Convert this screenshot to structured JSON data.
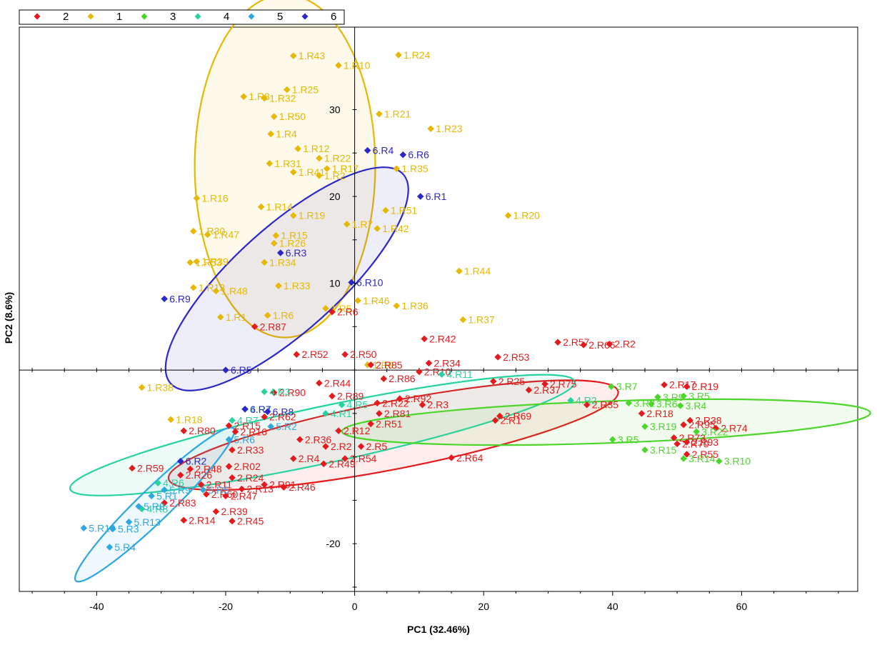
{
  "chart_data": {
    "type": "scatter",
    "xlabel": "PC1 (32.46%)",
    "ylabel": "PC2 (8.6%)",
    "xlim": [
      -52,
      78
    ],
    "ylim": [
      -25.5,
      39.5
    ],
    "xticks": [
      -40,
      -20,
      0,
      20,
      40,
      60
    ],
    "yticks": [
      -20,
      10,
      20,
      30
    ],
    "legend_position": "top-left",
    "legend_order": [
      "2",
      "1",
      "3",
      "4",
      "5",
      "6"
    ],
    "series": [
      {
        "name": "1",
        "color": "#e6b800",
        "points": [
          {
            "label": "1.R43",
            "x": -9.5,
            "y": 36.2
          },
          {
            "label": "1.R10",
            "x": -2.5,
            "y": 35.1
          },
          {
            "label": "1.R24",
            "x": 6.8,
            "y": 36.3
          },
          {
            "label": "1.R8",
            "x": -17.2,
            "y": 31.5
          },
          {
            "label": "1.R32",
            "x": -14,
            "y": 31.3
          },
          {
            "label": "1.R25",
            "x": -10.5,
            "y": 32.3
          },
          {
            "label": "1.R50",
            "x": -12.5,
            "y": 29.2
          },
          {
            "label": "1.R4",
            "x": -13,
            "y": 27.2
          },
          {
            "label": "1.R21",
            "x": 3.8,
            "y": 29.5
          },
          {
            "label": "1.R23",
            "x": 11.8,
            "y": 27.8
          },
          {
            "label": "1.R12",
            "x": -8.8,
            "y": 25.5
          },
          {
            "label": "1.R22",
            "x": -5.5,
            "y": 24.4
          },
          {
            "label": "1.R17",
            "x": -4.3,
            "y": 23.2
          },
          {
            "label": "1.R31",
            "x": -13.2,
            "y": 23.8
          },
          {
            "label": "1.R41",
            "x": -9.5,
            "y": 22.8
          },
          {
            "label": "1.R2",
            "x": -5.5,
            "y": 22.4
          },
          {
            "label": "1.R35",
            "x": 6.5,
            "y": 23.2
          },
          {
            "label": "1.R16",
            "x": -24.5,
            "y": 19.8
          },
          {
            "label": "1.R14",
            "x": -14.5,
            "y": 18.8
          },
          {
            "label": "1.R19",
            "x": -9.5,
            "y": 17.8
          },
          {
            "label": "1.R51",
            "x": 4.8,
            "y": 18.4
          },
          {
            "label": "1.R7",
            "x": -1.2,
            "y": 16.8
          },
          {
            "label": "1.R42",
            "x": 3.5,
            "y": 16.3
          },
          {
            "label": "1.R20",
            "x": 23.8,
            "y": 17.8
          },
          {
            "label": "1.R30",
            "x": -25.0,
            "y": 16.0
          },
          {
            "label": "1.R47",
            "x": -22.8,
            "y": 15.6
          },
          {
            "label": "1.R15",
            "x": -12.2,
            "y": 15.5
          },
          {
            "label": "1.R26",
            "x": -12.5,
            "y": 14.6
          },
          {
            "label": "1.R53",
            "x": -25.5,
            "y": 12.4
          },
          {
            "label": "1.R39",
            "x": -24.5,
            "y": 12.5
          },
          {
            "label": "1.R34",
            "x": -14.0,
            "y": 12.4
          },
          {
            "label": "1.R44",
            "x": 16.2,
            "y": 11.4
          },
          {
            "label": "1.R13",
            "x": -25.0,
            "y": 9.5
          },
          {
            "label": "1.R48",
            "x": -21.5,
            "y": 9.1
          },
          {
            "label": "1.R33",
            "x": -11.8,
            "y": 9.7
          },
          {
            "label": "1.R46",
            "x": 0.5,
            "y": 8.0
          },
          {
            "label": "1.R36",
            "x": 6.5,
            "y": 7.4
          },
          {
            "label": "1.R1",
            "x": -20.8,
            "y": 6.1
          },
          {
            "label": "1.R6",
            "x": -13.5,
            "y": 6.3
          },
          {
            "label": "1.R5",
            "x": -4.5,
            "y": 7.1
          },
          {
            "label": "1.R37",
            "x": 16.8,
            "y": 5.8
          },
          {
            "label": "1.R38",
            "x": -33.0,
            "y": -2.0
          },
          {
            "label": "1.R18",
            "x": -28.5,
            "y": -5.7
          },
          {
            "label": "1.R9",
            "x": 2.0,
            "y": 0.6
          }
        ]
      },
      {
        "name": "2",
        "color": "#e41a1c",
        "points": [
          {
            "label": "2.R87",
            "x": -15.5,
            "y": 5.0
          },
          {
            "label": "2.R6",
            "x": -3.5,
            "y": 6.7
          },
          {
            "label": "2.R42",
            "x": 10.8,
            "y": 3.6
          },
          {
            "label": "2.R57",
            "x": 31.5,
            "y": 3.2
          },
          {
            "label": "2.R66",
            "x": 35.5,
            "y": 2.9
          },
          {
            "label": "2.R2",
            "x": 39.5,
            "y": 3.0
          },
          {
            "label": "2.R52",
            "x": -9.0,
            "y": 1.8
          },
          {
            "label": "2.R50",
            "x": -1.5,
            "y": 1.8
          },
          {
            "label": "2.R53",
            "x": 22.2,
            "y": 1.5
          },
          {
            "label": "2.R85",
            "x": 2.5,
            "y": 0.6
          },
          {
            "label": "2.R34",
            "x": 11.5,
            "y": 0.8
          },
          {
            "label": "2.R10",
            "x": 10.0,
            "y": -0.2
          },
          {
            "label": "2.R86",
            "x": 4.5,
            "y": -1.0
          },
          {
            "label": "2.R44",
            "x": -5.5,
            "y": -1.5
          },
          {
            "label": "2.R25",
            "x": 21.5,
            "y": -1.3
          },
          {
            "label": "2.R75",
            "x": 29.5,
            "y": -1.6
          },
          {
            "label": "2.R37",
            "x": 27.0,
            "y": -2.3
          },
          {
            "label": "2.R90",
            "x": -12.5,
            "y": -2.6
          },
          {
            "label": "2.R89",
            "x": -3.5,
            "y": -3.0
          },
          {
            "label": "2.R22",
            "x": 3.5,
            "y": -3.8
          },
          {
            "label": "2.R92",
            "x": 7.0,
            "y": -3.3
          },
          {
            "label": "2.R3",
            "x": 10.5,
            "y": -4.0
          },
          {
            "label": "2.R81",
            "x": 3.8,
            "y": -5.0
          },
          {
            "label": "2.R51",
            "x": 2.5,
            "y": -6.2
          },
          {
            "label": "2.R35",
            "x": 36.0,
            "y": -4.0
          },
          {
            "label": "2.R69",
            "x": 22.5,
            "y": -5.3
          },
          {
            "label": "2.R1",
            "x": 21.8,
            "y": -5.8
          },
          {
            "label": "2.R80",
            "x": -26.5,
            "y": -7.0
          },
          {
            "label": "2.R15",
            "x": -19.5,
            "y": -6.4
          },
          {
            "label": "2.R16",
            "x": -18.5,
            "y": -7.1
          },
          {
            "label": "2.R62",
            "x": -14.0,
            "y": -5.4
          },
          {
            "label": "2.R36",
            "x": -8.5,
            "y": -8.0
          },
          {
            "label": "2.R12",
            "x": -2.5,
            "y": -7.0
          },
          {
            "label": "2.R5",
            "x": 1.0,
            "y": -8.8
          },
          {
            "label": "2.R33",
            "x": -19.0,
            "y": -9.2
          },
          {
            "label": "2.R2x",
            "x": -4.5,
            "y": -8.8
          },
          {
            "label": "2.R54",
            "x": -1.5,
            "y": -10.2
          },
          {
            "label": "2.R64",
            "x": 15.0,
            "y": -10.1
          },
          {
            "label": "2.R4",
            "x": -9.5,
            "y": -10.2
          },
          {
            "label": "2.R49",
            "x": -4.8,
            "y": -10.8
          },
          {
            "label": "2.R02",
            "x": -19.5,
            "y": -11.1
          },
          {
            "label": "2.R59",
            "x": -34.5,
            "y": -11.3
          },
          {
            "label": "2.R48",
            "x": -25.5,
            "y": -11.4
          },
          {
            "label": "2.R26",
            "x": -27.0,
            "y": -12.1
          },
          {
            "label": "2.R24",
            "x": -19.0,
            "y": -12.4
          },
          {
            "label": "2.R11",
            "x": -23.8,
            "y": -13.2
          },
          {
            "label": "2.R91",
            "x": -14.0,
            "y": -13.2
          },
          {
            "label": "2.R46",
            "x": -11.0,
            "y": -13.5
          },
          {
            "label": "2.R13",
            "x": -17.5,
            "y": -13.7
          },
          {
            "label": "2.R60",
            "x": -23.0,
            "y": -14.3
          },
          {
            "label": "2.R47",
            "x": -20.0,
            "y": -14.5
          },
          {
            "label": "2.R83",
            "x": -29.5,
            "y": -15.3
          },
          {
            "label": "2.R39",
            "x": -21.5,
            "y": -16.3
          },
          {
            "label": "2.R14",
            "x": -26.5,
            "y": -17.3
          },
          {
            "label": "2.R45",
            "x": -19.0,
            "y": -17.4
          },
          {
            "label": "2.R93",
            "x": 51.5,
            "y": -8.3
          },
          {
            "label": "2.R55",
            "x": 51.5,
            "y": -9.7
          },
          {
            "label": "2.R74",
            "x": 56.0,
            "y": -6.7
          },
          {
            "label": "2.R95",
            "x": 51.0,
            "y": -6.3
          },
          {
            "label": "2.R38",
            "x": 52.0,
            "y": -5.8
          },
          {
            "label": "2.R18",
            "x": 44.5,
            "y": -5.0
          },
          {
            "label": "2.R17",
            "x": 48.0,
            "y": -1.7
          },
          {
            "label": "2.R19",
            "x": 51.5,
            "y": -1.9
          },
          {
            "label": "2.R73",
            "x": 49.5,
            "y": -7.8
          },
          {
            "label": "2.R70",
            "x": 50.0,
            "y": -8.5
          }
        ]
      },
      {
        "name": "3",
        "color": "#4cd62b",
        "points": [
          {
            "label": "3.R7",
            "x": 39.8,
            "y": -1.9
          },
          {
            "label": "3.R9",
            "x": 47.0,
            "y": -3.1
          },
          {
            "label": "3.R5x",
            "x": 51.0,
            "y": -3.0
          },
          {
            "label": "3.R2",
            "x": 42.5,
            "y": -3.8
          },
          {
            "label": "3.R6",
            "x": 46.0,
            "y": -3.9
          },
          {
            "label": "3.R4",
            "x": 50.5,
            "y": -4.1
          },
          {
            "label": "3.R19",
            "x": 45.0,
            "y": -6.5
          },
          {
            "label": "3.R22",
            "x": 53.0,
            "y": -7.1
          },
          {
            "label": "3.R5",
            "x": 40.0,
            "y": -8.0
          },
          {
            "label": "3.R15",
            "x": 45.0,
            "y": -9.2
          },
          {
            "label": "3.R14",
            "x": 51.0,
            "y": -10.2
          },
          {
            "label": "3.R10",
            "x": 56.5,
            "y": -10.5
          }
        ]
      },
      {
        "name": "4",
        "color": "#26d3a0",
        "points": [
          {
            "label": "4.R11",
            "x": 13.5,
            "y": -0.5
          },
          {
            "label": "4.R2",
            "x": 33.5,
            "y": -3.5
          },
          {
            "label": "4.R1",
            "x": -4.5,
            "y": -5.0
          },
          {
            "label": "4.R3",
            "x": -14.0,
            "y": -2.5
          },
          {
            "label": "4.R4",
            "x": -17.0,
            "y": -4.5
          },
          {
            "label": "4.R6",
            "x": -30.5,
            "y": -13.0
          },
          {
            "label": "4.R8",
            "x": -33.0,
            "y": -16.0
          },
          {
            "label": "4.R5",
            "x": -2.0,
            "y": -4.0
          },
          {
            "label": "4.R7",
            "x": -19.0,
            "y": -5.8
          }
        ]
      },
      {
        "name": "5",
        "color": "#2ea7e0",
        "points": [
          {
            "label": "5.R6",
            "x": -19.5,
            "y": -8.0
          },
          {
            "label": "5.R9",
            "x": -29.5,
            "y": -13.8
          },
          {
            "label": "5.R5",
            "x": -23.5,
            "y": -13.8
          },
          {
            "label": "5.R1",
            "x": -31.5,
            "y": -14.5
          },
          {
            "label": "5.R8",
            "x": -33.5,
            "y": -15.7
          },
          {
            "label": "5.R13",
            "x": -35.0,
            "y": -17.5
          },
          {
            "label": "5.R10",
            "x": -42.0,
            "y": -18.2
          },
          {
            "label": "5.R3",
            "x": -37.5,
            "y": -18.3
          },
          {
            "label": "5.R4",
            "x": -38.0,
            "y": -20.4
          },
          {
            "label": "5.R2",
            "x": -13.0,
            "y": -6.5
          }
        ]
      },
      {
        "name": "6",
        "color": "#2b27c8",
        "points": [
          {
            "label": "6.R4",
            "x": 2.0,
            "y": 25.3
          },
          {
            "label": "6.R6",
            "x": 7.5,
            "y": 24.8
          },
          {
            "label": "6.R1",
            "x": 10.2,
            "y": 20.0
          },
          {
            "label": "6.R3",
            "x": -11.5,
            "y": 13.5
          },
          {
            "label": "6.R10",
            "x": -0.5,
            "y": 10.1
          },
          {
            "label": "6.R9",
            "x": -29.5,
            "y": 8.2
          },
          {
            "label": "6.R5",
            "x": -20.0,
            "y": 0.0
          },
          {
            "label": "6.R7",
            "x": -17.0,
            "y": -4.5
          },
          {
            "label": "6.R2",
            "x": -27.0,
            "y": -10.5
          },
          {
            "label": "6.R8",
            "x": -13.5,
            "y": -4.8
          }
        ]
      }
    ],
    "ellipses": [
      {
        "series": "1",
        "cx": -10.8,
        "cy": 23.5,
        "rx": 28.0,
        "ry": 39.5,
        "rotate_deg": 0
      },
      {
        "series": "6",
        "cx": -10.5,
        "cy": 10.5,
        "rx": 48.5,
        "ry": 16.2,
        "rotate_deg": -42
      },
      {
        "series": "2",
        "cx": 6.0,
        "cy": -7.5,
        "rx": 71.0,
        "ry": 10.5,
        "rotate_deg": -11
      },
      {
        "series": "4",
        "cx": -5.0,
        "cy": -7.5,
        "rx": 80.0,
        "ry": 8.8,
        "rotate_deg": -12
      },
      {
        "series": "3",
        "cx": 39.0,
        "cy": -6.0,
        "rx": 82.0,
        "ry": 6.5,
        "rotate_deg": -2
      },
      {
        "series": "5",
        "cx": -31.0,
        "cy": -15.5,
        "rx": 34.0,
        "ry": 5.0,
        "rotate_deg": -44
      }
    ]
  }
}
